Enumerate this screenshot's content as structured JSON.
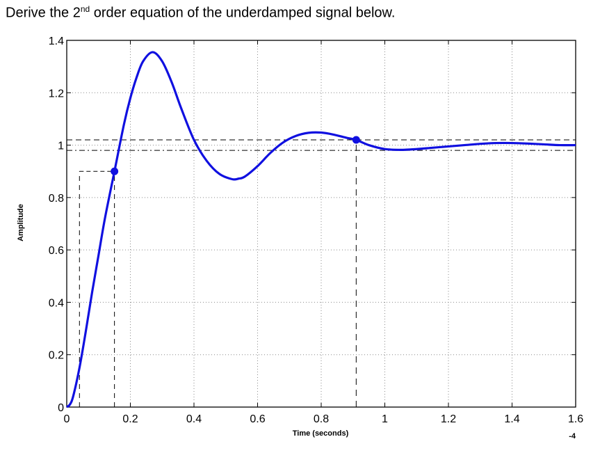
{
  "question": {
    "text_before": "Derive the 2",
    "superscript": "nd",
    "text_after": " order equation of the underdamped signal below."
  },
  "colors": {
    "curve": "#1010e0",
    "markers": "#1010e0",
    "axis": "#000000",
    "grid": "#8a8a8a",
    "guides": "#000000"
  },
  "chart_data": {
    "type": "line",
    "title": "",
    "xlabel": "Time (seconds)",
    "ylabel": "Amplitude",
    "xlim": [
      0,
      1.6
    ],
    "ylim": [
      0,
      1.4
    ],
    "x_ticks": [
      0,
      0.2,
      0.4,
      0.6,
      0.8,
      1,
      1.2,
      1.4,
      1.6
    ],
    "x_tick_labels": [
      "0",
      "0.2",
      "0.4",
      "0.6",
      "0.8",
      "1",
      "1.2",
      "1.4",
      "1.6"
    ],
    "y_ticks": [
      0,
      0.2,
      0.4,
      0.6,
      0.8,
      1,
      1.2,
      1.4
    ],
    "y_tick_labels": [
      "0",
      "0.2",
      "0.4",
      "0.6",
      "0.8",
      "1",
      "1.2",
      "1.4"
    ],
    "grid": true,
    "corner_label": "-4",
    "series": [
      {
        "x": [
          0,
          0.01,
          0.02,
          0.04,
          0.06,
          0.08,
          0.1,
          0.12,
          0.15,
          0.18,
          0.2,
          0.22,
          0.24,
          0.27,
          0.3,
          0.33,
          0.36,
          0.4,
          0.44,
          0.48,
          0.52,
          0.54,
          0.56,
          0.6,
          0.64,
          0.68,
          0.72,
          0.76,
          0.8,
          0.84,
          0.88,
          0.91,
          0.95,
          1.0,
          1.05,
          1.1,
          1.15,
          1.2,
          1.25,
          1.3,
          1.35,
          1.4,
          1.45,
          1.5,
          1.55,
          1.6
        ],
        "y": [
          0,
          0.01,
          0.04,
          0.15,
          0.29,
          0.44,
          0.58,
          0.72,
          0.9,
          1.08,
          1.18,
          1.26,
          1.32,
          1.355,
          1.32,
          1.24,
          1.14,
          1.02,
          0.94,
          0.89,
          0.87,
          0.872,
          0.88,
          0.92,
          0.97,
          1.01,
          1.035,
          1.047,
          1.048,
          1.04,
          1.028,
          1.02,
          1.0,
          0.985,
          0.982,
          0.985,
          0.99,
          0.995,
          1.0,
          1.005,
          1.008,
          1.008,
          1.006,
          1.003,
          1.0,
          1.0
        ]
      }
    ],
    "annotations": {
      "points": [
        {
          "x": 0.15,
          "y": 0.9
        },
        {
          "x": 0.91,
          "y": 1.02
        }
      ],
      "settling_band_upper": 1.02,
      "settling_band_lower": 0.98,
      "rise_start_time": 0.04,
      "rise_start_level": 0.1,
      "rise_end_level": 0.9
    }
  }
}
